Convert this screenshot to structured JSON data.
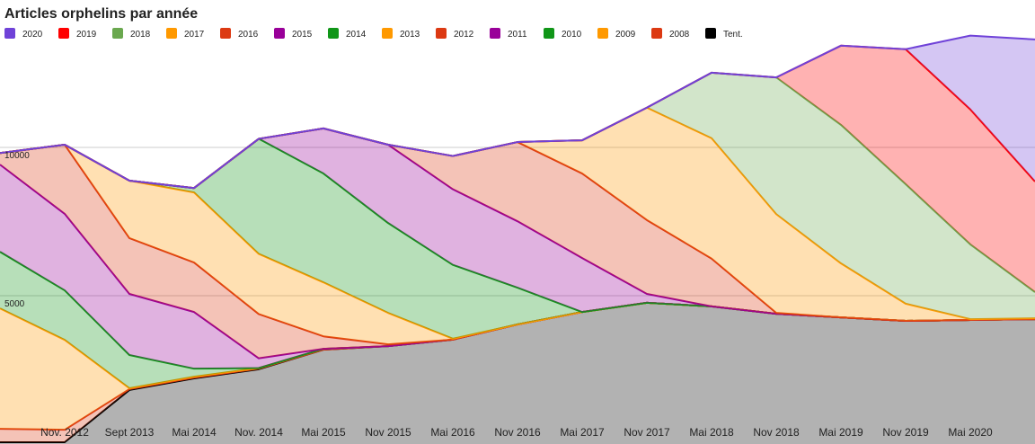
{
  "chart_data": {
    "type": "stacked-area",
    "title": "Articles orphelins par année",
    "categories": [
      null,
      "Nov. 2012",
      "Sept 2013",
      "Mai 2014",
      "Nov. 2014",
      "Mai 2015",
      "Nov 2015",
      "Mai 2016",
      "Nov 2016",
      "Mai 2017",
      "Nov 2017",
      "Mai 2018",
      "Nov 2018",
      "Mai 2019",
      "Nov 2019",
      "Mai 2020",
      null
    ],
    "ylim": [
      0,
      14000
    ],
    "yticks": [
      5000,
      10000
    ],
    "grid": true,
    "legend": "top",
    "series": [
      {
        "name": "2020",
        "color": "#6f42d8",
        "values": [
          0,
          0,
          0,
          0,
          0,
          0,
          0,
          0,
          0,
          0,
          0,
          0,
          0,
          0,
          0,
          2490,
          4790
        ]
      },
      {
        "name": "2019",
        "color": "#ff0000",
        "values": [
          0,
          0,
          0,
          0,
          0,
          0,
          0,
          0,
          0,
          0,
          0,
          0,
          0,
          2670,
          4550,
          4550,
          3730
        ]
      },
      {
        "name": "2018",
        "color": "#6aa84f",
        "values": [
          0,
          0,
          0,
          0,
          0,
          0,
          0,
          0,
          0,
          0,
          0,
          2210,
          4610,
          4670,
          4030,
          2520,
          880
        ]
      },
      {
        "name": "2017",
        "color": "#ff9900",
        "values": [
          0,
          0,
          0,
          0,
          0,
          0,
          0,
          0,
          0,
          1120,
          3790,
          4060,
          3330,
          1820,
          580,
          30,
          30
        ]
      },
      {
        "name": "2016",
        "color": "#dc3912",
        "values": [
          0,
          0,
          0,
          0,
          0,
          0,
          0,
          1120,
          2670,
          2850,
          2490,
          1610,
          30,
          0,
          0,
          0,
          0
        ]
      },
      {
        "name": "2015",
        "color": "#990099",
        "values": [
          0,
          0,
          0,
          0,
          0,
          1520,
          2640,
          2550,
          2240,
          1820,
          300,
          0,
          0,
          0,
          0,
          0,
          0
        ]
      },
      {
        "name": "2014",
        "color": "#109618",
        "values": [
          0,
          0,
          0,
          150,
          3880,
          3670,
          3030,
          2490,
          1240,
          0,
          0,
          0,
          0,
          0,
          0,
          0,
          0
        ]
      },
      {
        "name": "2013",
        "color": "#ff9900",
        "values": [
          0,
          0,
          1940,
          2360,
          2030,
          1820,
          1060,
          30,
          0,
          0,
          0,
          0,
          0,
          0,
          0,
          0,
          0
        ]
      },
      {
        "name": "2012",
        "color": "#dc3912",
        "values": [
          390,
          2330,
          1880,
          1670,
          1490,
          420,
          60,
          0,
          0,
          0,
          0,
          0,
          0,
          0,
          0,
          0,
          0
        ]
      },
      {
        "name": "2011",
        "color": "#990099",
        "values": [
          2940,
          2580,
          2060,
          1910,
          330,
          0,
          0,
          0,
          0,
          0,
          0,
          0,
          0,
          0,
          0,
          0,
          0
        ]
      },
      {
        "name": "2010",
        "color": "#109618",
        "values": [
          1910,
          1670,
          1120,
          270,
          0,
          0,
          0,
          0,
          0,
          0,
          0,
          0,
          0,
          0,
          0,
          0,
          0
        ]
      },
      {
        "name": "2009",
        "color": "#ff9900",
        "values": [
          4060,
          3030,
          30,
          30,
          20,
          30,
          0,
          0,
          0,
          0,
          0,
          0,
          0,
          0,
          0,
          0,
          0
        ]
      },
      {
        "name": "2008",
        "color": "#dc3912",
        "values": [
          450,
          420,
          30,
          30,
          20,
          0,
          0,
          0,
          0,
          0,
          0,
          0,
          0,
          0,
          0,
          0,
          0
        ]
      },
      {
        "name": "Tent.",
        "color": "#000000",
        "values": [
          60,
          60,
          1820,
          2210,
          2520,
          3180,
          3300,
          3520,
          4030,
          4450,
          4760,
          4640,
          4390,
          4270,
          4150,
          4180,
          4210
        ]
      }
    ]
  }
}
